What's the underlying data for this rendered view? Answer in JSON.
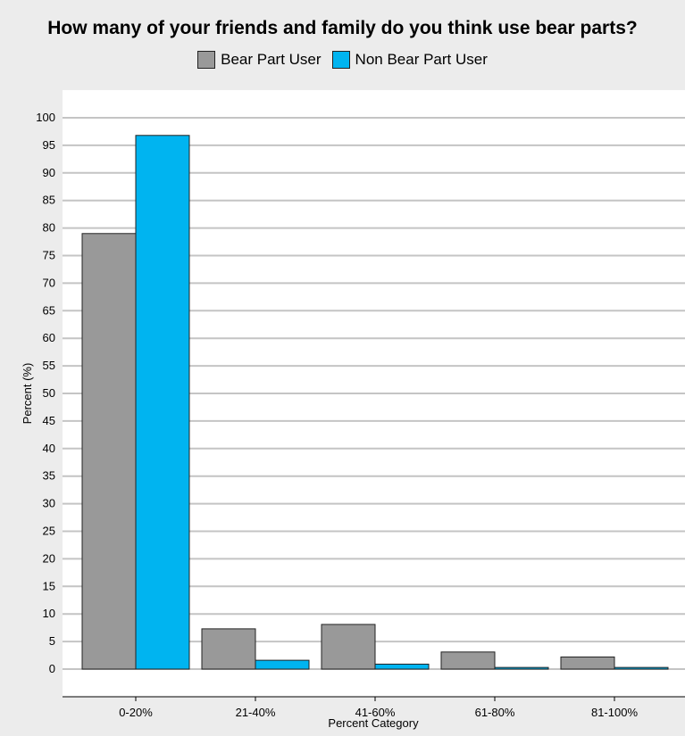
{
  "chart_data": {
    "type": "bar",
    "title": "How many of your friends and family do you think use bear parts?",
    "xlabel": "Percent Category",
    "ylabel": "Percent (%)",
    "categories": [
      "0-20%",
      "21-40%",
      "41-60%",
      "61-80%",
      "81-100%"
    ],
    "series": [
      {
        "name": "Bear Part User",
        "color": "#999999",
        "values": [
          79,
          7.3,
          8.1,
          3.1,
          2.2
        ]
      },
      {
        "name": "Non Bear Part User",
        "color": "#00b4f0",
        "values": [
          96.8,
          1.6,
          0.9,
          0.3,
          0.3
        ]
      }
    ],
    "yticks": [
      0,
      5,
      10,
      15,
      20,
      25,
      30,
      35,
      40,
      45,
      50,
      55,
      60,
      65,
      70,
      75,
      80,
      85,
      90,
      95,
      100
    ],
    "ylim": [
      0,
      100
    ],
    "grid": true,
    "legend_position": "top-center"
  }
}
